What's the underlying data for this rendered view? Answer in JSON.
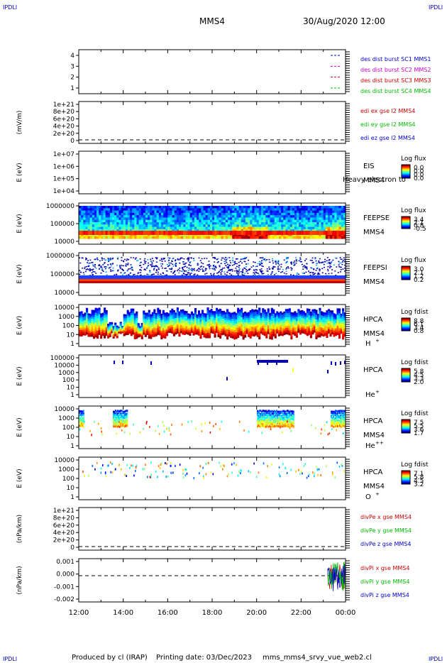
{
  "corner_label": "IPDLI",
  "header": {
    "spacecraft": "MMS4",
    "datetime": "30/Aug/2020 12:00"
  },
  "footer": {
    "produced_by": "Produced by cl (IRAP)",
    "printing_date": "Printing date: 03/Dec/2023",
    "filename": "mms_mms4_srvy_vue_web2.cl"
  },
  "colors": {
    "mms1": "#0000cc",
    "mms2": "#cc00cc",
    "mms3": "#cc0000",
    "mms4": "#00bb00",
    "x": "#cc0000",
    "y": "#00bb00",
    "z": "#0000cc"
  },
  "chart_data": [
    {
      "id": "burst",
      "type": "line",
      "yticks": [
        "1",
        "2",
        "3",
        "4"
      ],
      "legend": [
        {
          "text": "des dist burst SC1 MMS1",
          "color": "#0000cc"
        },
        {
          "text": "des dist burst SC2 MMS2",
          "color": "#cc00cc"
        },
        {
          "text": "des dist burst SC3 MMS3",
          "color": "#cc0000"
        },
        {
          "text": "des dist burst SC4 MMS4",
          "color": "#00bb00"
        }
      ]
    },
    {
      "id": "edi",
      "type": "line",
      "ylabel": "(mV/m)",
      "yticks": [
        "1e+21",
        "8e+20",
        "6e+20",
        "4e+20",
        "2e+20",
        "0"
      ],
      "legend": [
        {
          "text": "edi ex gse l2 MMS4",
          "color": "#cc0000"
        },
        {
          "text": "edi ey gse l2 MMS4",
          "color": "#00bb00"
        },
        {
          "text": "edi ez gse l2 MMS4",
          "color": "#0000cc"
        }
      ]
    },
    {
      "id": "eis",
      "type": "heatmap",
      "ylabel": "E (eV)",
      "yticks": [
        "1e+07",
        "1e+06",
        "1e+05",
        "1e+04"
      ],
      "instrument": "EIS",
      "sc": "MMS4",
      "overlay": "Heavy electron to",
      "colorbar": {
        "title": "Log flux",
        "ticks": [
          "0.0",
          "0.0",
          "0.0",
          "0.0"
        ]
      }
    },
    {
      "id": "feepse",
      "type": "heatmap",
      "ylabel": "E (eV)",
      "yticks": [
        "1000000",
        "100000",
        "10000"
      ],
      "instrument": "FEEPSE",
      "sc": "MMS4",
      "colorbar": {
        "title": "Log flux",
        "ticks": [
          "3.4",
          "2.1",
          "0.8",
          "-0.5"
        ]
      }
    },
    {
      "id": "feepsi",
      "type": "heatmap",
      "ylabel": "E (eV)",
      "yticks": [
        "1000000",
        "100000",
        "10000"
      ],
      "instrument": "FEEPSI",
      "sc": "MMS4",
      "colorbar": {
        "title": "Log flux",
        "ticks": [
          "3.0",
          "2.1",
          "1.2",
          "0.2"
        ]
      }
    },
    {
      "id": "hpca_h",
      "type": "heatmap",
      "ylabel": "E (eV)",
      "yticks": [
        "10000",
        "1000",
        "100",
        "10",
        "1"
      ],
      "instrument": "HPCA",
      "sc": "MMS4",
      "species": "H",
      "charge": "+",
      "colorbar": {
        "title": "Log fdist",
        "ticks": [
          "8.8",
          "6.1",
          "3.4",
          "0.8"
        ]
      }
    },
    {
      "id": "hpca_he",
      "type": "heatmap",
      "ylabel": "E (eV)",
      "yticks": [
        "100000",
        "10000",
        "1000",
        "100",
        "10",
        "1"
      ],
      "instrument": "HPCA",
      "sc": "",
      "species": "He",
      "charge": "+",
      "colorbar": {
        "title": "Log fdist",
        "ticks": [
          "5.8",
          "4.5",
          "3.3",
          "2.0"
        ]
      }
    },
    {
      "id": "hpca_hepp",
      "type": "heatmap",
      "ylabel": "E (eV)",
      "yticks": [
        "10000",
        "1000",
        "100",
        "10",
        "1"
      ],
      "instrument": "HPCA",
      "sc": "MMS4",
      "species": "He",
      "charge": "++",
      "colorbar": {
        "title": "Log fdist",
        "ticks": [
          "7.5",
          "5.5",
          "3.6",
          "1.7"
        ]
      }
    },
    {
      "id": "hpca_o",
      "type": "heatmap",
      "ylabel": "E (eV)",
      "yticks": [
        "10000",
        "1000",
        "100",
        "10",
        "1"
      ],
      "instrument": "HPCA",
      "sc": "MMS4",
      "species": "O",
      "charge": "+",
      "colorbar": {
        "title": "Log fdist",
        "ticks": [
          "7.1",
          "5.8",
          "4.5",
          "3.2"
        ]
      }
    },
    {
      "id": "divpe",
      "type": "line",
      "ylabel": "(nPa/km)",
      "yticks": [
        "1e+21",
        "8e+20",
        "6e+20",
        "4e+20",
        "2e+20",
        "0"
      ],
      "legend": [
        {
          "text": "divPe x gse MMS4",
          "color": "#cc0000"
        },
        {
          "text": "divPe y gse MMS4",
          "color": "#00bb00"
        },
        {
          "text": "divPe z gse MMS4",
          "color": "#0000cc"
        }
      ]
    },
    {
      "id": "divpi",
      "type": "line",
      "ylabel": "(nPa/km)",
      "yticks": [
        "0.001",
        "0.000",
        "-0.001",
        "-0.002"
      ],
      "legend": [
        {
          "text": "divPi x gse MMS4",
          "color": "#cc0000"
        },
        {
          "text": "divPi y gse MMS4",
          "color": "#00bb00"
        },
        {
          "text": "divPi z gse MMS4",
          "color": "#0000cc"
        }
      ]
    }
  ],
  "xaxis": {
    "ticks": [
      "12:00",
      "14:00",
      "16:00",
      "18:00",
      "20:00",
      "22:00",
      "00:00"
    ]
  }
}
